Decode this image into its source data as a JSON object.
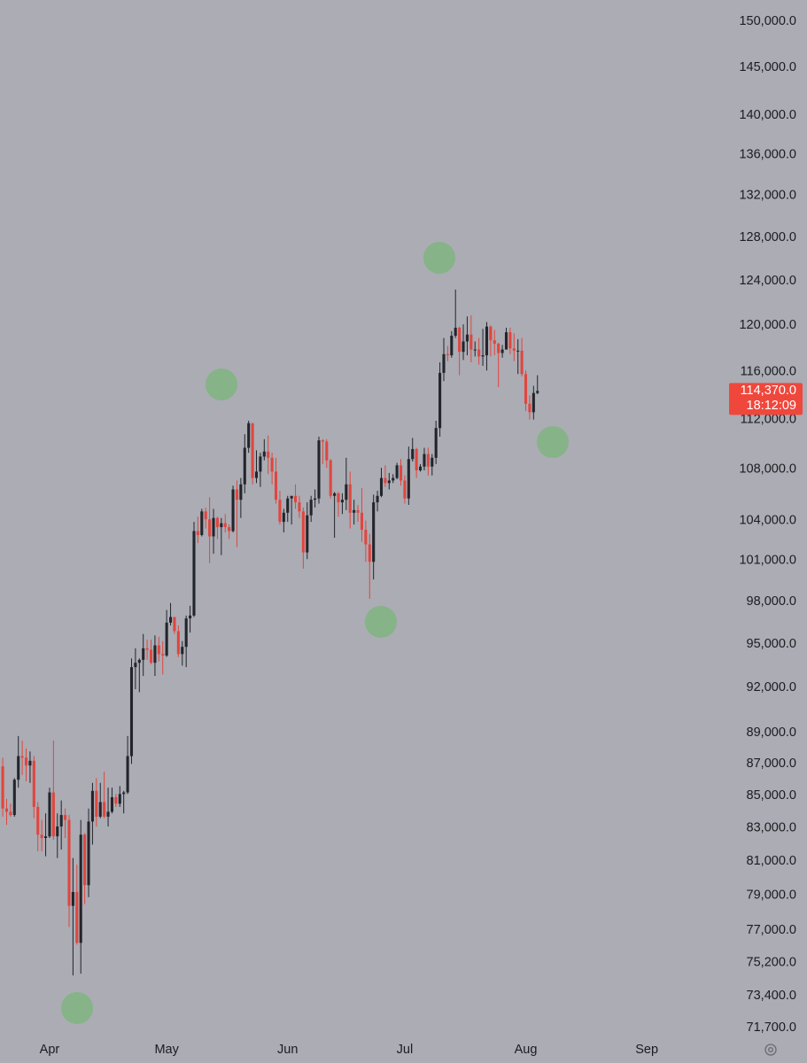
{
  "chart_data": {
    "type": "candlestick",
    "up_color": "#22252c",
    "down_color": "#e0463e",
    "log_scale": true,
    "xlim": [
      -12.7,
      173.4
    ],
    "xticks": [
      {
        "value": 0,
        "label": "Apr"
      },
      {
        "value": 30,
        "label": "May"
      },
      {
        "value": 61,
        "label": "Jun"
      },
      {
        "value": 91,
        "label": "Jul"
      },
      {
        "value": 122,
        "label": "Aug"
      },
      {
        "value": 153,
        "label": "Sep"
      }
    ],
    "ylim": [
      71240,
      152350
    ],
    "yticks": [
      {
        "value": 150000,
        "label": "150,000.0"
      },
      {
        "value": 145000,
        "label": "145,000.0"
      },
      {
        "value": 140000,
        "label": "140,000.0"
      },
      {
        "value": 136000,
        "label": "136,000.0"
      },
      {
        "value": 132000,
        "label": "132,000.0"
      },
      {
        "value": 128000,
        "label": "128,000.0"
      },
      {
        "value": 124000,
        "label": "124,000.0"
      },
      {
        "value": 120000,
        "label": "120,000.0"
      },
      {
        "value": 116000,
        "label": "116,000.0"
      },
      {
        "value": 112000,
        "label": "112,000.0"
      },
      {
        "value": 108000,
        "label": "108,000.0"
      },
      {
        "value": 104000,
        "label": "104,000.0"
      },
      {
        "value": 101000,
        "label": "101,000.0"
      },
      {
        "value": 98000,
        "label": "98,000.0"
      },
      {
        "value": 95000,
        "label": "95,000.0"
      },
      {
        "value": 92000,
        "label": "92,000.0"
      },
      {
        "value": 89000,
        "label": "89,000.0"
      },
      {
        "value": 87000,
        "label": "87,000.0"
      },
      {
        "value": 85000,
        "label": "85,000.0"
      },
      {
        "value": 83000,
        "label": "83,000.0"
      },
      {
        "value": 81000,
        "label": "81,000.0"
      },
      {
        "value": 79000,
        "label": "79,000.0"
      },
      {
        "value": 77000,
        "label": "77,000.0"
      },
      {
        "value": 75200,
        "label": "75,200.0"
      },
      {
        "value": 73400,
        "label": "73,400.0"
      },
      {
        "value": 71700,
        "label": "71,700.0"
      }
    ],
    "last_price": {
      "value": 114370,
      "label": "114,370.0",
      "color": "#f0473c"
    },
    "countdown": "18:12:09",
    "x": [
      -12,
      -11,
      -10,
      -9,
      -8,
      -7,
      -6,
      -5,
      -4,
      -3,
      -2,
      -1,
      0,
      1,
      2,
      3,
      4,
      5,
      6,
      7,
      8,
      9,
      10,
      11,
      12,
      13,
      14,
      15,
      16,
      17,
      18,
      19,
      20,
      21,
      22,
      23,
      24,
      25,
      26,
      27,
      28,
      29,
      30,
      31,
      32,
      33,
      34,
      35,
      36,
      37,
      38,
      39,
      40,
      41,
      42,
      43,
      44,
      45,
      46,
      47,
      48,
      49,
      50,
      51,
      52,
      53,
      54,
      55,
      56,
      57,
      58,
      59,
      60,
      61,
      62,
      63,
      64,
      65,
      66,
      67,
      68,
      69,
      70,
      71,
      72,
      73,
      74,
      75,
      76,
      77,
      78,
      79,
      80,
      81,
      82,
      83,
      84,
      85,
      86,
      87,
      88,
      89,
      90,
      91,
      92,
      93,
      94,
      95,
      96,
      97,
      98,
      99,
      100,
      101,
      102,
      103,
      104,
      105,
      106,
      107,
      108,
      109,
      110,
      111,
      112,
      113,
      114,
      115,
      116,
      117,
      118,
      119,
      120,
      121,
      122,
      123,
      124,
      125
    ],
    "open": [
      86850,
      84200,
      84000,
      83800,
      86000,
      87500,
      87400,
      86900,
      87200,
      84300,
      82600,
      82400,
      82500,
      85200,
      82500,
      83100,
      83800,
      83500,
      78400,
      79200,
      76300,
      82600,
      79600,
      83400,
      85300,
      83700,
      84600,
      83700,
      84000,
      84900,
      84500,
      85100,
      85200,
      87500,
      93400,
      93700,
      93900,
      94700,
      94600,
      93700,
      94900,
      94300,
      94200,
      96500,
      96900,
      95900,
      94300,
      94800,
      96800,
      97000,
      103200,
      102900,
      104700,
      104100,
      102800,
      104200,
      103500,
      103800,
      103500,
      103200,
      106400,
      105600,
      106800,
      109700,
      111700,
      107300,
      107800,
      109000,
      109400,
      108900,
      107800,
      105600,
      103900,
      104600,
      105700,
      105900,
      105400,
      104700,
      101600,
      104400,
      105600,
      105700,
      110300,
      110200,
      108700,
      105900,
      106100,
      105400,
      105600,
      106800,
      104600,
      104800,
      104600,
      103300,
      102200,
      100900,
      105400,
      105900,
      107300,
      106900,
      107100,
      107300,
      108300,
      107100,
      105700,
      108800,
      109600,
      107900,
      108200,
      109200,
      108200,
      108900,
      111300,
      115900,
      117500,
      117400,
      119100,
      119800,
      117700,
      118600,
      119200,
      117900,
      117900,
      117300,
      117400,
      119900,
      118700,
      118400,
      117600,
      117900,
      119400,
      118000,
      117800,
      117800,
      115800,
      113300,
      112600,
      114200
    ],
    "high": [
      87400,
      84800,
      84500,
      86100,
      88800,
      88500,
      88000,
      87800,
      87500,
      84600,
      83500,
      83900,
      85500,
      88500,
      83900,
      84700,
      84200,
      83800,
      81200,
      80800,
      83500,
      82700,
      84200,
      85800,
      86100,
      85800,
      86500,
      85500,
      85500,
      85100,
      85600,
      85300,
      88800,
      94000,
      94700,
      94000,
      95700,
      95300,
      95300,
      95600,
      95500,
      95200,
      97400,
      97900,
      96900,
      96300,
      95200,
      97000,
      97700,
      103900,
      104300,
      104900,
      105000,
      105800,
      104900,
      104300,
      104200,
      104500,
      103700,
      106700,
      107100,
      107300,
      110800,
      111900,
      111700,
      109500,
      109300,
      110400,
      110700,
      109300,
      108900,
      106300,
      104900,
      105900,
      105900,
      106800,
      105900,
      105000,
      105400,
      105900,
      106400,
      110600,
      110400,
      110400,
      108800,
      106200,
      106200,
      106100,
      108900,
      107800,
      105600,
      105200,
      106500,
      104000,
      103000,
      106000,
      106300,
      108100,
      108300,
      107700,
      107600,
      108500,
      108800,
      107500,
      109800,
      110500,
      109700,
      108400,
      109700,
      109700,
      109200,
      111900,
      116800,
      118900,
      118200,
      119500,
      123200,
      119900,
      120100,
      120800,
      120900,
      118600,
      118900,
      119700,
      120300,
      120000,
      119600,
      118500,
      118300,
      119800,
      119800,
      119300,
      118800,
      118900,
      116100,
      114000,
      114800,
      115700
    ],
    "low": [
      83700,
      83200,
      83700,
      83700,
      85500,
      86300,
      85900,
      85800,
      83600,
      81600,
      81600,
      81300,
      82400,
      82300,
      81200,
      81700,
      82400,
      77200,
      74500,
      76200,
      74600,
      78500,
      78900,
      82000,
      83100,
      83600,
      83600,
      83100,
      83900,
      84300,
      84300,
      83900,
      85100,
      87000,
      91900,
      91700,
      92800,
      93900,
      93600,
      92800,
      93800,
      92900,
      94100,
      96300,
      95700,
      94100,
      93500,
      93400,
      95800,
      96900,
      102300,
      102800,
      103400,
      100800,
      101500,
      102600,
      101400,
      103100,
      102600,
      103100,
      102000,
      104200,
      106100,
      109300,
      106800,
      106900,
      106600,
      108700,
      107600,
      106800,
      105300,
      103700,
      103100,
      103900,
      103700,
      104900,
      104200,
      100400,
      101100,
      103900,
      105000,
      105300,
      108400,
      108100,
      105700,
      102700,
      104300,
      104500,
      104800,
      103400,
      103700,
      103900,
      102400,
      100900,
      98200,
      99600,
      104700,
      105800,
      106600,
      106400,
      106900,
      107200,
      106700,
      105300,
      105200,
      108600,
      107300,
      107800,
      107900,
      107500,
      107500,
      108400,
      110600,
      115200,
      116900,
      117200,
      118900,
      115700,
      117000,
      117400,
      116800,
      117300,
      116600,
      116500,
      116100,
      117300,
      117400,
      114700,
      117200,
      117900,
      117500,
      116900,
      115800,
      115600,
      112700,
      112000,
      112000,
      114100
    ],
    "close": [
      84200,
      84000,
      83800,
      86000,
      87500,
      87400,
      86900,
      87200,
      84300,
      82600,
      82400,
      82500,
      85200,
      82500,
      83100,
      83800,
      83500,
      78400,
      79200,
      76300,
      82600,
      79600,
      83400,
      85300,
      83700,
      84600,
      83700,
      84000,
      84900,
      84500,
      85100,
      85200,
      87500,
      93400,
      93700,
      93900,
      94700,
      94600,
      93700,
      94900,
      94300,
      94200,
      96500,
      96900,
      95900,
      94300,
      94800,
      96800,
      97000,
      103200,
      102900,
      104700,
      104100,
      102800,
      104200,
      103500,
      103800,
      103500,
      103200,
      106400,
      105600,
      106800,
      109700,
      111700,
      107300,
      107800,
      109000,
      109400,
      108900,
      107800,
      105600,
      103900,
      104600,
      105700,
      105900,
      105400,
      104700,
      101600,
      104400,
      105600,
      105700,
      110300,
      110200,
      108700,
      105900,
      106100,
      105400,
      105600,
      106800,
      104600,
      104800,
      104600,
      103300,
      102200,
      100900,
      105400,
      105900,
      107300,
      106900,
      107100,
      107300,
      108300,
      107100,
      105700,
      108800,
      109600,
      107900,
      108200,
      109200,
      108200,
      108900,
      111300,
      115900,
      117500,
      117400,
      119100,
      119800,
      117700,
      118600,
      119200,
      117900,
      117900,
      117300,
      117400,
      119900,
      118700,
      118400,
      117600,
      117900,
      119400,
      118000,
      117800,
      117800,
      115800,
      113300,
      112600,
      114200,
      114370
    ]
  }
}
